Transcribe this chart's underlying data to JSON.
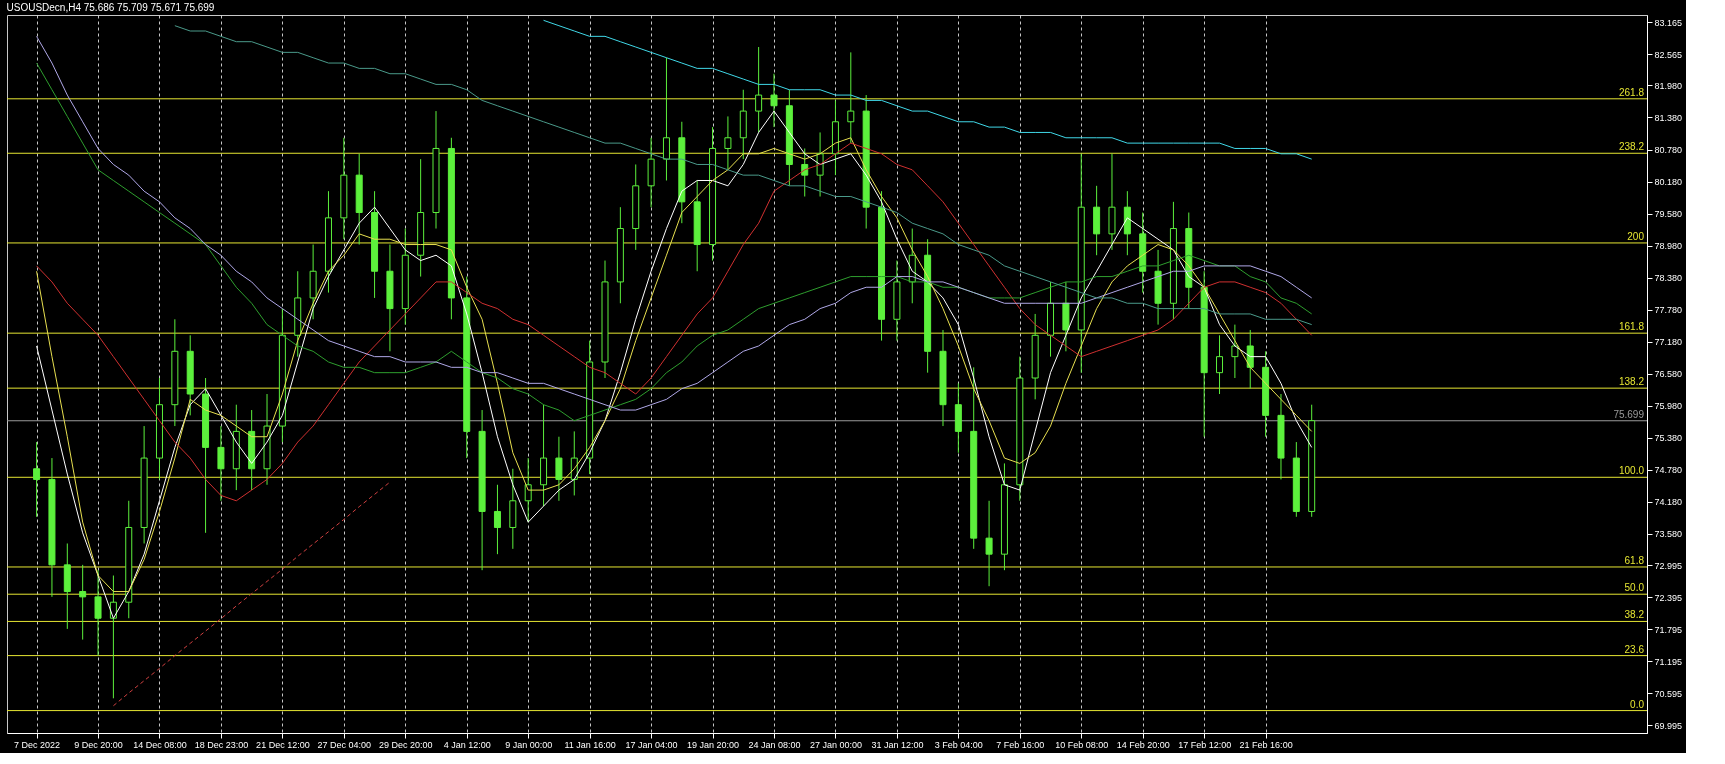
{
  "chart_data": {
    "type": "candlestick",
    "title": "USOUSDecn,H4  75.686 75.709 75.671 75.699",
    "color": "#5cf03c",
    "categories": [
      "7 Dec 2022",
      null,
      null,
      null,
      "9 Dec 20:00",
      null,
      null,
      null,
      "14 Dec 08:00",
      null,
      null,
      null,
      "18 Dec 23:00",
      null,
      null,
      null,
      "21 Dec 12:00",
      null,
      null,
      null,
      "27 Dec 04:00",
      null,
      null,
      null,
      "29 Dec 20:00",
      null,
      null,
      null,
      "4 Jan 12:00",
      null,
      null,
      null,
      "9 Jan 00:00",
      null,
      null,
      null,
      "11 Jan 16:00",
      null,
      null,
      null,
      "17 Jan 04:00",
      null,
      null,
      null,
      "19 Jan 20:00",
      null,
      null,
      null,
      "24 Jan 08:00",
      null,
      null,
      null,
      "27 Jan 00:00",
      null,
      null,
      null,
      "31 Jan 12:00",
      null,
      null,
      null,
      "3 Feb 04:00",
      null,
      null,
      null,
      "7 Feb 16:00",
      null,
      null,
      null,
      "10 Feb 08:00",
      null,
      null,
      null,
      "14 Feb 20:00",
      null,
      null,
      null,
      "17 Feb 12:00",
      null,
      null,
      null,
      "21 Feb 16:00",
      null,
      null,
      null,
      null,
      null,
      null,
      null,
      null,
      null,
      null,
      null,
      null,
      null,
      null,
      null,
      null,
      null,
      null,
      null,
      null,
      null,
      null,
      null,
      null
    ],
    "ohlc": [
      [
        74.8,
        75.3,
        73.9,
        74.6
      ],
      [
        74.6,
        75.0,
        72.4,
        73.0
      ],
      [
        73.0,
        73.4,
        71.8,
        72.5
      ],
      [
        72.5,
        73.0,
        71.6,
        72.4
      ],
      [
        72.4,
        72.9,
        71.3,
        72.0
      ],
      [
        72.0,
        72.8,
        70.5,
        72.3
      ],
      [
        72.3,
        74.2,
        72.0,
        73.7
      ],
      [
        73.7,
        75.6,
        73.4,
        75.0
      ],
      [
        75.0,
        76.5,
        74.6,
        76.0
      ],
      [
        76.0,
        77.6,
        75.6,
        77.0
      ],
      [
        77.0,
        77.3,
        75.8,
        76.2
      ],
      [
        76.2,
        76.5,
        73.6,
        75.2
      ],
      [
        75.2,
        75.6,
        74.2,
        74.8
      ],
      [
        74.8,
        76.0,
        74.4,
        75.5
      ],
      [
        75.5,
        75.9,
        74.4,
        74.8
      ],
      [
        74.8,
        76.2,
        74.5,
        75.6
      ],
      [
        75.6,
        77.8,
        75.3,
        77.3
      ],
      [
        77.3,
        78.5,
        76.9,
        78.0
      ],
      [
        78.0,
        79.0,
        77.6,
        78.5
      ],
      [
        78.5,
        80.0,
        78.1,
        79.5
      ],
      [
        79.5,
        81.0,
        79.1,
        80.3
      ],
      [
        80.3,
        80.7,
        79.0,
        79.6
      ],
      [
        79.6,
        80.0,
        78.0,
        78.5
      ],
      [
        78.5,
        79.0,
        77.0,
        77.8
      ],
      [
        77.8,
        79.3,
        77.5,
        78.8
      ],
      [
        78.8,
        80.6,
        78.4,
        79.6
      ],
      [
        79.6,
        81.5,
        79.3,
        80.8
      ],
      [
        80.8,
        81.0,
        77.6,
        78.0
      ],
      [
        78.0,
        78.4,
        75.0,
        75.5
      ],
      [
        75.5,
        75.9,
        72.9,
        74.0
      ],
      [
        74.0,
        74.5,
        73.2,
        73.7
      ],
      [
        73.7,
        74.8,
        73.3,
        74.2
      ],
      [
        74.2,
        75.0,
        73.8,
        74.5
      ],
      [
        74.5,
        76.0,
        74.1,
        75.0
      ],
      [
        75.0,
        75.4,
        74.2,
        74.6
      ],
      [
        74.6,
        75.5,
        74.3,
        75.0
      ],
      [
        75.0,
        77.2,
        74.7,
        76.8
      ],
      [
        76.8,
        78.7,
        76.5,
        78.3
      ],
      [
        78.3,
        79.7,
        77.9,
        79.3
      ],
      [
        79.3,
        80.5,
        78.9,
        80.1
      ],
      [
        80.1,
        81.0,
        79.7,
        80.6
      ],
      [
        80.6,
        82.5,
        80.2,
        81.0
      ],
      [
        81.0,
        81.3,
        79.4,
        79.8
      ],
      [
        79.8,
        80.2,
        78.5,
        79.0
      ],
      [
        79.0,
        81.2,
        78.7,
        80.8
      ],
      [
        80.8,
        81.4,
        80.4,
        81.0
      ],
      [
        81.0,
        81.9,
        80.6,
        81.5
      ],
      [
        81.5,
        82.7,
        81.1,
        81.8
      ],
      [
        81.8,
        82.2,
        81.2,
        81.6
      ],
      [
        81.6,
        81.9,
        80.1,
        80.5
      ],
      [
        80.5,
        80.8,
        79.9,
        80.3
      ],
      [
        80.3,
        81.1,
        79.9,
        80.7
      ],
      [
        80.7,
        81.7,
        80.3,
        81.3
      ],
      [
        81.3,
        82.6,
        80.9,
        81.5
      ],
      [
        81.5,
        81.8,
        79.3,
        79.7
      ],
      [
        79.7,
        80.0,
        77.2,
        77.6
      ],
      [
        77.6,
        78.7,
        77.2,
        78.3
      ],
      [
        78.3,
        79.3,
        77.9,
        78.8
      ],
      [
        78.8,
        79.1,
        76.6,
        77.0
      ],
      [
        77.0,
        77.4,
        75.6,
        76.0
      ],
      [
        76.0,
        76.4,
        75.1,
        75.5
      ],
      [
        75.5,
        76.7,
        73.3,
        73.5
      ],
      [
        73.5,
        74.2,
        72.6,
        73.2
      ],
      [
        73.2,
        74.9,
        72.9,
        74.5
      ],
      [
        74.5,
        76.9,
        74.2,
        76.5
      ],
      [
        76.5,
        77.7,
        76.1,
        77.3
      ],
      [
        77.3,
        78.3,
        76.9,
        77.9
      ],
      [
        77.9,
        78.3,
        77.0,
        77.4
      ],
      [
        77.4,
        80.7,
        76.6,
        79.7
      ],
      [
        79.7,
        80.1,
        78.8,
        79.2
      ],
      [
        79.2,
        80.7,
        78.9,
        79.7
      ],
      [
        79.7,
        80.0,
        78.8,
        79.2
      ],
      [
        79.2,
        79.6,
        78.1,
        78.5
      ],
      [
        78.5,
        78.9,
        77.5,
        77.9
      ],
      [
        77.9,
        79.8,
        77.6,
        79.3
      ],
      [
        79.3,
        79.6,
        77.8,
        78.2
      ],
      [
        78.2,
        78.5,
        75.4,
        76.6
      ],
      [
        76.6,
        77.3,
        76.2,
        76.9
      ],
      [
        76.9,
        77.5,
        76.5,
        77.1
      ],
      [
        77.1,
        77.4,
        76.3,
        76.7
      ],
      [
        76.7,
        77.0,
        75.4,
        75.8
      ],
      [
        75.8,
        76.2,
        74.6,
        75.0
      ],
      [
        75.0,
        75.3,
        73.9,
        74.0
      ],
      [
        74.0,
        76.0,
        73.9,
        75.7
      ],
      null,
      null,
      null,
      null,
      null,
      null,
      null,
      null,
      null,
      null,
      null,
      null,
      null,
      null,
      null,
      null,
      null,
      null,
      null,
      null,
      null
    ],
    "series": [
      {
        "type": "line",
        "color": "#ffffff",
        "values": [
          77.1,
          75.9,
          74.7,
          73.6,
          72.8,
          72.0,
          72.5,
          73.2,
          74.2,
          75.2,
          76.0,
          76.3,
          75.8,
          75.3,
          74.9,
          75.3,
          75.8,
          76.8,
          77.8,
          78.4,
          78.9,
          79.4,
          79.7,
          79.3,
          78.9,
          78.7,
          78.8,
          78.6,
          77.7,
          76.6,
          75.4,
          74.5,
          73.8,
          74.1,
          74.4,
          74.6,
          75.1,
          75.7,
          76.6,
          77.6,
          78.5,
          79.3,
          80.0,
          80.2,
          80.2,
          80.1,
          80.5,
          81.1,
          81.5,
          81.1,
          80.7,
          80.5,
          80.6,
          80.7,
          80.3,
          79.8,
          79.1,
          78.5,
          78.3,
          78.0,
          77.5,
          76.5,
          75.4,
          74.5,
          74.4,
          75.5,
          76.6,
          77.3,
          78.0,
          78.5,
          79.0,
          79.5,
          79.3,
          79.1,
          78.9,
          78.4,
          78.2,
          77.5,
          77.1,
          76.9,
          76.9,
          76.4,
          75.7,
          75.2,
          null,
          null,
          null,
          null,
          null,
          null,
          null,
          null,
          null,
          null,
          null,
          null,
          null,
          null,
          null,
          null,
          null,
          null,
          null,
          null,
          null
        ]
      },
      {
        "type": "line",
        "color": "#e8e050",
        "values": [
          78.5,
          76.9,
          75.4,
          73.8,
          72.8,
          72.5,
          72.5,
          73.1,
          74.0,
          75.0,
          76.1,
          75.9,
          75.8,
          75.6,
          75.4,
          75.4,
          76.2,
          77.2,
          77.9,
          78.5,
          78.8,
          79.2,
          79.1,
          79.1,
          79.0,
          79.0,
          79.0,
          78.9,
          78.2,
          77.6,
          76.4,
          75.1,
          74.4,
          74.4,
          74.5,
          74.8,
          75.2,
          75.7,
          76.3,
          77.2,
          78.0,
          78.8,
          79.6,
          79.9,
          80.2,
          80.4,
          80.7,
          80.7,
          80.8,
          80.7,
          80.6,
          80.7,
          80.9,
          81.0,
          80.4,
          79.9,
          79.5,
          78.9,
          78.4,
          77.8,
          77.1,
          76.3,
          75.7,
          75.0,
          74.9,
          75.1,
          75.6,
          76.4,
          77.1,
          77.8,
          78.3,
          78.6,
          78.8,
          79.0,
          78.9,
          78.6,
          78.2,
          77.7,
          77.2,
          76.7,
          76.4,
          76.1,
          75.8,
          75.5,
          null,
          null,
          null,
          null,
          null,
          null,
          null,
          null,
          null,
          null,
          null,
          null,
          null,
          null,
          null,
          null,
          null,
          null,
          null,
          null,
          null
        ]
      },
      {
        "type": "line",
        "color": "#d03030",
        "values": [
          78.6,
          78.3,
          77.9,
          77.6,
          77.3,
          76.9,
          76.5,
          76.1,
          75.7,
          75.3,
          75.0,
          74.6,
          74.3,
          74.2,
          74.4,
          74.6,
          74.9,
          75.3,
          75.6,
          76.0,
          76.4,
          76.8,
          77.1,
          77.4,
          77.7,
          78.0,
          78.3,
          78.3,
          78.1,
          77.9,
          77.8,
          77.6,
          77.5,
          77.3,
          77.1,
          76.9,
          76.7,
          76.6,
          76.4,
          76.2,
          76.5,
          76.9,
          77.3,
          77.7,
          78.0,
          78.5,
          79.0,
          79.4,
          80.0,
          80.2,
          80.4,
          80.5,
          80.7,
          80.9,
          80.8,
          80.7,
          80.5,
          80.4,
          80.1,
          79.8,
          79.4,
          79.0,
          78.6,
          78.2,
          77.8,
          77.5,
          77.3,
          77.1,
          76.9,
          77.0,
          77.1,
          77.2,
          77.3,
          77.4,
          77.6,
          77.9,
          78.2,
          78.3,
          78.3,
          78.2,
          78.1,
          77.9,
          77.6,
          77.3,
          null,
          null,
          null,
          null,
          null,
          null,
          null,
          null,
          null,
          null,
          null,
          null,
          null,
          null,
          null,
          null,
          null,
          null,
          null,
          null,
          null
        ]
      },
      {
        "type": "line",
        "color": "#2e9e2e",
        "values": [
          82.4,
          81.9,
          81.4,
          80.9,
          80.4,
          80.2,
          80.0,
          79.8,
          79.6,
          79.4,
          79.2,
          79.0,
          78.6,
          78.2,
          77.9,
          77.5,
          77.3,
          77.1,
          77.0,
          76.8,
          76.7,
          76.7,
          76.6,
          76.6,
          76.6,
          76.7,
          76.8,
          77.0,
          76.8,
          76.6,
          76.5,
          76.3,
          76.2,
          76.0,
          75.9,
          75.7,
          75.8,
          75.9,
          76.0,
          76.1,
          76.3,
          76.6,
          76.8,
          77.1,
          77.3,
          77.4,
          77.6,
          77.8,
          77.9,
          78.0,
          78.1,
          78.2,
          78.3,
          78.4,
          78.4,
          78.4,
          78.4,
          78.3,
          78.3,
          78.2,
          78.2,
          78.1,
          78.0,
          78.0,
          78.0,
          78.1,
          78.2,
          78.3,
          78.3,
          78.4,
          78.4,
          78.5,
          78.6,
          78.6,
          78.7,
          78.8,
          78.7,
          78.6,
          78.6,
          78.4,
          78.3,
          78.0,
          77.9,
          77.7,
          null,
          null,
          null,
          null,
          null,
          null,
          null,
          null,
          null,
          null,
          null,
          null,
          null,
          null,
          null,
          null,
          null,
          null,
          null,
          null,
          null
        ]
      },
      {
        "type": "line",
        "color": "#b0a8e8",
        "values": [
          82.9,
          82.4,
          81.8,
          81.3,
          80.8,
          80.5,
          80.3,
          80.0,
          79.8,
          79.5,
          79.3,
          79.0,
          78.8,
          78.5,
          78.3,
          78.0,
          77.8,
          77.6,
          77.4,
          77.2,
          77.1,
          77.0,
          76.9,
          76.9,
          76.8,
          76.8,
          76.8,
          76.7,
          76.7,
          76.6,
          76.6,
          76.5,
          76.4,
          76.4,
          76.3,
          76.2,
          76.1,
          76.0,
          75.9,
          75.9,
          76.0,
          76.1,
          76.3,
          76.4,
          76.6,
          76.8,
          77.0,
          77.1,
          77.3,
          77.5,
          77.6,
          77.8,
          77.9,
          78.1,
          78.2,
          78.2,
          78.4,
          78.4,
          78.3,
          78.3,
          78.2,
          78.1,
          78.0,
          77.9,
          77.9,
          77.9,
          77.9,
          77.9,
          77.9,
          78.0,
          78.1,
          78.2,
          78.3,
          78.4,
          78.5,
          78.5,
          78.6,
          78.6,
          78.6,
          78.6,
          78.5,
          78.4,
          78.2,
          78.0,
          null,
          null,
          null,
          null,
          null,
          null,
          null,
          null,
          null,
          null,
          null,
          null,
          null,
          null,
          null,
          null,
          null,
          null,
          null,
          null,
          null
        ]
      },
      {
        "type": "line",
        "color": "#40d8e8",
        "values": [
          null,
          null,
          null,
          null,
          null,
          null,
          null,
          null,
          null,
          null,
          null,
          null,
          null,
          null,
          null,
          null,
          null,
          null,
          null,
          null,
          null,
          null,
          null,
          null,
          null,
          null,
          null,
          null,
          null,
          null,
          null,
          null,
          null,
          83.2,
          83.1,
          83.0,
          82.9,
          82.9,
          82.8,
          82.7,
          82.6,
          82.5,
          82.4,
          82.3,
          82.3,
          82.2,
          82.1,
          82.0,
          82.0,
          81.9,
          81.9,
          81.9,
          81.8,
          81.8,
          81.7,
          81.7,
          81.6,
          81.5,
          81.5,
          81.4,
          81.3,
          81.3,
          81.2,
          81.2,
          81.1,
          81.1,
          81.1,
          81.0,
          81.0,
          81.0,
          81.0,
          80.9,
          80.9,
          80.9,
          80.9,
          80.9,
          80.9,
          80.9,
          80.8,
          80.8,
          80.8,
          80.7,
          80.7,
          80.6,
          null,
          null,
          null,
          null,
          null,
          null,
          null,
          null,
          null,
          null,
          null,
          null,
          null,
          null,
          null,
          null,
          null,
          null,
          null,
          null,
          null
        ]
      },
      {
        "type": "line",
        "color": "#4a9a8a",
        "values": [
          null,
          null,
          null,
          null,
          null,
          null,
          null,
          null,
          null,
          83.1,
          83.0,
          83.0,
          82.9,
          82.8,
          82.8,
          82.7,
          82.6,
          82.6,
          82.5,
          82.4,
          82.4,
          82.3,
          82.3,
          82.2,
          82.2,
          82.1,
          82.0,
          82.0,
          81.9,
          81.7,
          81.6,
          81.5,
          81.4,
          81.3,
          81.2,
          81.1,
          81.0,
          80.9,
          80.9,
          80.8,
          80.7,
          80.6,
          80.6,
          80.5,
          80.5,
          80.4,
          80.3,
          80.3,
          80.2,
          80.1,
          80.1,
          80.0,
          79.9,
          79.9,
          79.8,
          79.7,
          79.6,
          79.4,
          79.3,
          79.2,
          79.0,
          78.9,
          78.8,
          78.6,
          78.5,
          78.4,
          78.3,
          78.2,
          78.1,
          78.0,
          78.0,
          77.9,
          77.9,
          77.8,
          77.8,
          77.8,
          77.8,
          77.7,
          77.7,
          77.7,
          77.6,
          77.6,
          77.6,
          77.5,
          null,
          null,
          null,
          null,
          null,
          null,
          null,
          null,
          null,
          null,
          null,
          null,
          null,
          null,
          null,
          null,
          null,
          null,
          null,
          null,
          null
        ]
      },
      {
        "type": "line",
        "color": "#d04040",
        "line_style": "dashed",
        "values": [
          null,
          null,
          null,
          null,
          null,
          70.36,
          70.6,
          70.83,
          71.06,
          71.3,
          71.53,
          71.76,
          71.99,
          72.23,
          72.46,
          72.69,
          72.92,
          73.16,
          73.39,
          73.62,
          73.85,
          74.09,
          74.32,
          74.55,
          null,
          null,
          null,
          null,
          null,
          null,
          null,
          null,
          null,
          null,
          null,
          null,
          null,
          null,
          null,
          null,
          null,
          null,
          null,
          null,
          null,
          null,
          null,
          null,
          null,
          null,
          null,
          null,
          null,
          null,
          null,
          null,
          null,
          null,
          null,
          null,
          null,
          null,
          null,
          null,
          null,
          null,
          null,
          null,
          null,
          null,
          null,
          null,
          null,
          null,
          null,
          null,
          null,
          null,
          null,
          null,
          null,
          null,
          null,
          null,
          null,
          null,
          null,
          null,
          null,
          null,
          null,
          null,
          null,
          null,
          null,
          null,
          null,
          null,
          null,
          null,
          null,
          null,
          null,
          null,
          null
        ]
      }
    ],
    "ylim": [
      69.85,
      83.3
    ],
    "yticks": [
      83.165,
      82.565,
      {
        "value": 81.98,
        "label": "81.980"
      },
      {
        "value": 81.38,
        "label": "81.380"
      },
      {
        "value": 80.78,
        "label": "80.780"
      },
      {
        "value": 80.18,
        "label": "80.180"
      },
      {
        "value": 79.58,
        "label": "79.580"
      },
      {
        "value": 78.98,
        "label": "78.980"
      },
      {
        "value": 78.38,
        "label": "78.380"
      },
      {
        "value": 77.78,
        "label": "77.780"
      },
      {
        "value": 77.18,
        "label": "77.180"
      },
      {
        "value": 76.58,
        "label": "76.580"
      },
      {
        "value": 75.98,
        "label": "75.980"
      },
      {
        "value": 75.38,
        "label": "75.380"
      },
      {
        "value": 74.78,
        "label": "74.780"
      },
      {
        "value": 74.18,
        "label": "74.180"
      },
      {
        "value": 73.58,
        "label": "73.580"
      },
      72.995,
      72.395,
      71.795,
      71.195,
      70.595,
      69.995
    ],
    "ref_lines": [
      {
        "axis": "y",
        "value": 81.73,
        "color": "#e6e632"
      },
      {
        "axis": "y",
        "value": 80.71,
        "color": "#e6e632"
      },
      {
        "axis": "y",
        "value": 79.03,
        "color": "#e6e632"
      },
      {
        "axis": "y",
        "value": 77.34,
        "color": "#e6e632"
      },
      {
        "axis": "y",
        "value": 76.31,
        "color": "#e6e632"
      },
      {
        "axis": "y",
        "value": 75.699,
        "label": "75.699",
        "color": "#9a9a9a"
      },
      {
        "axis": "y",
        "value": 74.64,
        "color": "#e6e632"
      },
      {
        "axis": "y",
        "value": 72.96,
        "color": "#e6e632"
      },
      {
        "axis": "y",
        "value": 72.45,
        "color": "#e6e632"
      },
      {
        "axis": "y",
        "value": 71.94,
        "color": "#e6e632"
      },
      {
        "axis": "y",
        "value": 71.3,
        "color": "#e6e632"
      },
      {
        "axis": "y",
        "value": 70.27,
        "color": "#e6e632"
      }
    ],
    "annotations": [
      {
        "text": "261.8",
        "y": 81.73
      },
      {
        "text": "238.2",
        "y": 80.71
      },
      {
        "text": "200",
        "y": 79.03
      },
      {
        "text": "161.8",
        "y": 77.34
      },
      {
        "text": "138.2",
        "y": 76.31
      },
      {
        "text": "100.0",
        "y": 74.64
      },
      {
        "text": "61.8",
        "y": 72.96
      },
      {
        "text": "50.0",
        "y": 72.45
      },
      {
        "text": "38.2",
        "y": 71.94
      },
      {
        "text": "23.6",
        "y": 71.3
      },
      {
        "text": "0.0",
        "y": 70.27
      }
    ],
    "grid": "x"
  }
}
